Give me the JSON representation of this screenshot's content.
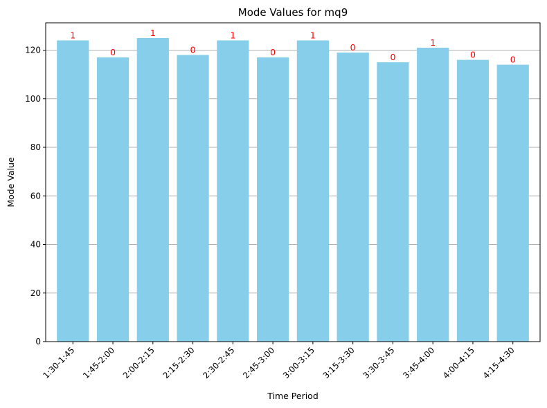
{
  "chart_data": {
    "type": "bar",
    "title": "Mode Values for mq9",
    "xlabel": "Time Period",
    "ylabel": "Mode Value",
    "categories": [
      "1:30-1:45",
      "1:45-2:00",
      "2:00-2:15",
      "2:15-2:30",
      "2:30-2:45",
      "2:45-3:00",
      "3:00-3:15",
      "3:15-3:30",
      "3:30-3:45",
      "3:45-4:00",
      "4:00-4:15",
      "4:15-4:30"
    ],
    "values": [
      124,
      117,
      125,
      118,
      124,
      117,
      124,
      119,
      115,
      121,
      116,
      114
    ],
    "bar_labels": [
      "1",
      "0",
      "1",
      "0",
      "1",
      "0",
      "1",
      "0",
      "0",
      "1",
      "0",
      "0"
    ],
    "ylim": [
      0,
      131.25
    ],
    "yticks": [
      0,
      20,
      40,
      60,
      80,
      100,
      120
    ],
    "grid": "y",
    "bar_color": "#87ceeb",
    "bar_label_color": "#ff0000",
    "grid_color": "#b0b0b0"
  }
}
